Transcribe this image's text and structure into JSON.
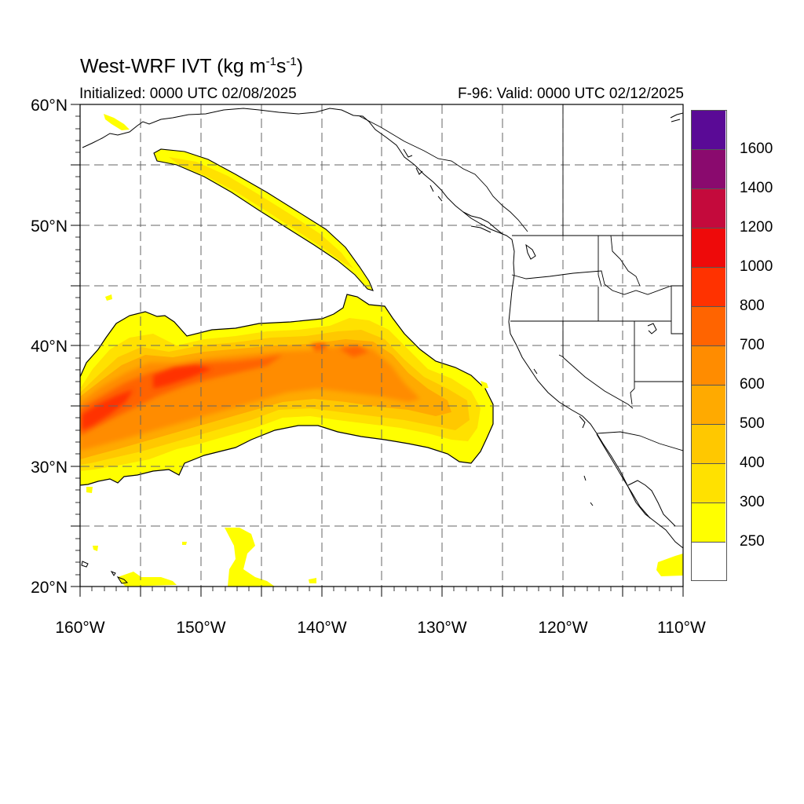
{
  "title": {
    "main": "West-WRF IVT (kg m",
    "exp1": "-1",
    "mid": "s",
    "exp2": "-1",
    "end": ")"
  },
  "subtitle_left": "Initialized: 0000 UTC 02/08/2025",
  "subtitle_right": "F-96: Valid: 0000 UTC 02/12/2025",
  "lat_labels": [
    "60°N",
    "50°N",
    "40°N",
    "30°N",
    "20°N"
  ],
  "lon_labels": [
    "160°W",
    "150°W",
    "140°W",
    "130°W",
    "120°W",
    "110°W"
  ],
  "colorbar": {
    "colors": [
      "#ffffff",
      "#ffff00",
      "#ffe100",
      "#ffc800",
      "#ffaa00",
      "#ff8c00",
      "#ff6400",
      "#ff3200",
      "#ee0a0a",
      "#c40a3c",
      "#8a0a6e",
      "#5a0a96"
    ],
    "labels": [
      "250",
      "300",
      "400",
      "500",
      "600",
      "700",
      "800",
      "1000",
      "1200",
      "1400",
      "1600"
    ]
  }
}
